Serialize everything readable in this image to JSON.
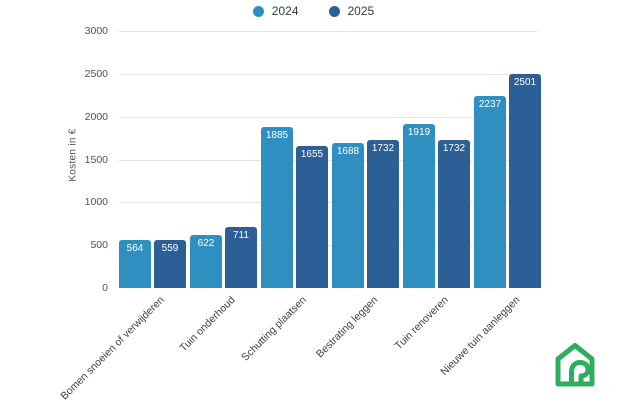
{
  "chart_data": {
    "type": "bar",
    "title": "",
    "xlabel": "",
    "ylabel": "Kosten in €",
    "categories": [
      "Bomen snoeien of verwijderen",
      "Tuin onderhoud",
      "Schutting plaatsen",
      "Bestrating leggen",
      "Tuin renoveren",
      "Nieuwe tuin aanleggen"
    ],
    "series": [
      {
        "name": "2024",
        "color": "#2E8FC0",
        "values": [
          564,
          622,
          1885,
          1688,
          1919,
          2237
        ]
      },
      {
        "name": "2025",
        "color": "#2B5F95",
        "values": [
          559,
          711,
          1655,
          1732,
          1732,
          2501
        ]
      }
    ],
    "ylim": [
      0,
      3000
    ],
    "yticks": [
      0,
      500,
      1000,
      1500,
      2000,
      2500,
      3000
    ],
    "grid": true,
    "legend_position": "top",
    "value_labels": "inside-top"
  },
  "logo": {
    "name": "house-logo",
    "color": "#2FAD5F"
  }
}
